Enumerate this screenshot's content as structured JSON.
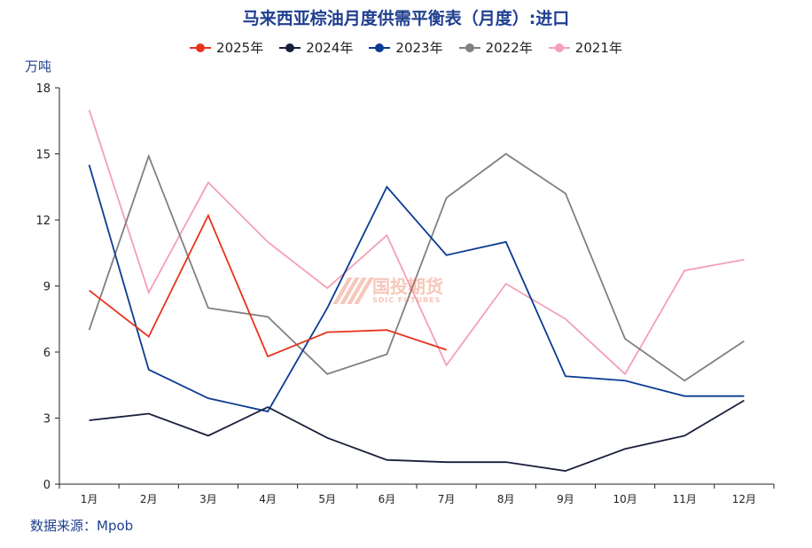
{
  "chart_data": {
    "type": "line",
    "title": "马来西亚棕油月度供需平衡表（月度）:进口",
    "ylabel": "万吨",
    "categories": [
      "1月",
      "2月",
      "3月",
      "4月",
      "5月",
      "6月",
      "7月",
      "8月",
      "9月",
      "10月",
      "11月",
      "12月"
    ],
    "ylim": [
      0,
      18
    ],
    "yticks": [
      0,
      3,
      6,
      9,
      12,
      15,
      18
    ],
    "grid": false,
    "legend_position": "top",
    "series": [
      {
        "name": "2025年",
        "color": "#e8321e",
        "values": [
          8.8,
          6.7,
          12.2,
          5.8,
          6.9,
          7.0,
          6.1,
          null,
          null,
          null,
          null,
          null
        ]
      },
      {
        "name": "2024年",
        "color": "#1a1f3a",
        "values": [
          2.9,
          3.2,
          2.2,
          3.5,
          2.1,
          1.1,
          1.0,
          1.0,
          0.6,
          1.6,
          2.2,
          3.8
        ]
      },
      {
        "name": "2023年",
        "color": "#0b3c93",
        "values": [
          14.5,
          5.2,
          3.9,
          3.3,
          8.0,
          13.5,
          10.4,
          11.0,
          4.9,
          4.7,
          4.0,
          4.0
        ]
      },
      {
        "name": "2022年",
        "color": "#808080",
        "values": [
          7.0,
          14.9,
          8.0,
          7.6,
          5.0,
          5.9,
          13.0,
          15.0,
          13.2,
          6.6,
          4.7,
          6.5
        ]
      },
      {
        "name": "2021年",
        "color": "#f4a0b5",
        "values": [
          17.0,
          8.7,
          13.7,
          11.0,
          8.9,
          11.3,
          5.4,
          9.1,
          7.5,
          5.0,
          9.7,
          10.2
        ]
      }
    ]
  },
  "source": "数据来源：Mpob",
  "watermark": {
    "cn": "国投期货",
    "en": "SDIC FUTURES"
  }
}
